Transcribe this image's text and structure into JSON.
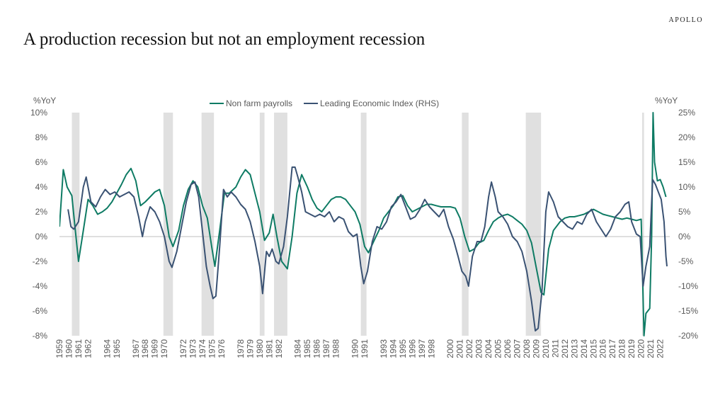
{
  "chart_data": {
    "type": "line",
    "brand": "APOLLO",
    "title": "A production recession but not an employment recession",
    "y_label": "%YoY",
    "y2_label": "%YoY",
    "legend": "top",
    "xlim": [
      1959,
      2023
    ],
    "xticks": [
      1959,
      1960,
      1961,
      1962,
      1964,
      1965,
      1967,
      1968,
      1969,
      1970,
      1972,
      1973,
      1974,
      1975,
      1976,
      1978,
      1979,
      1980,
      1981,
      1982,
      1984,
      1985,
      1986,
      1987,
      1988,
      1990,
      1991,
      1993,
      1994,
      1995,
      1996,
      1997,
      1998,
      2000,
      2001,
      2002,
      2003,
      2004,
      2005,
      2006,
      2007,
      2008,
      2009,
      2010,
      2011,
      2012,
      2013,
      2014,
      2015,
      2016,
      2017,
      2018,
      2019,
      2020,
      2021,
      2022
    ],
    "ylim": [
      -8,
      10
    ],
    "yticks": [
      {
        "value": -8,
        "label": "-8%"
      },
      {
        "value": -6,
        "label": "-6%"
      },
      {
        "value": -4,
        "label": "-4%"
      },
      {
        "value": -2,
        "label": "-2%"
      },
      {
        "value": 0,
        "label": "0%"
      },
      {
        "value": 2,
        "label": "2%"
      },
      {
        "value": 4,
        "label": "4%"
      },
      {
        "value": 6,
        "label": "6%"
      },
      {
        "value": 8,
        "label": "8%"
      },
      {
        "value": 10,
        "label": "10%"
      }
    ],
    "y2lim": [
      -20,
      25
    ],
    "y2ticks": [
      {
        "value": -20,
        "label": "-20%"
      },
      {
        "value": -15,
        "label": "-15%"
      },
      {
        "value": -10,
        "label": "-10%"
      },
      {
        "value": -5,
        "label": "-5%"
      },
      {
        "value": 0,
        "label": "0%"
      },
      {
        "value": 5,
        "label": "5%"
      },
      {
        "value": 10,
        "label": "10%"
      },
      {
        "value": 15,
        "label": "15%"
      },
      {
        "value": 20,
        "label": "20%"
      },
      {
        "value": 25,
        "label": "25%"
      }
    ],
    "recession_color": "#e0e0e0",
    "recessions": [
      [
        1960.3,
        1961.1
      ],
      [
        1969.9,
        1970.9
      ],
      [
        1973.9,
        1975.2
      ],
      [
        1980.0,
        1980.5
      ],
      [
        1981.5,
        1982.9
      ],
      [
        1990.6,
        1991.2
      ],
      [
        2001.2,
        2001.9
      ],
      [
        2007.9,
        2009.5
      ],
      [
        2020.1,
        2020.3
      ]
    ],
    "series": [
      {
        "name": "Non farm payrolls",
        "color": "#0e7b64",
        "axis": "y",
        "x": [
          1959.0,
          1959.4,
          1959.8,
          1960.3,
          1960.6,
          1961.0,
          1961.5,
          1962.0,
          1962.5,
          1963.0,
          1963.5,
          1964.0,
          1964.5,
          1965.0,
          1965.5,
          1966.0,
          1966.5,
          1967.0,
          1967.5,
          1968.0,
          1968.5,
          1969.0,
          1969.5,
          1970.0,
          1970.5,
          1970.9,
          1971.5,
          1972.0,
          1972.5,
          1973.0,
          1973.5,
          1974.0,
          1974.5,
          1975.0,
          1975.3,
          1975.8,
          1976.3,
          1976.8,
          1977.5,
          1978.0,
          1978.5,
          1979.0,
          1979.5,
          1980.0,
          1980.5,
          1981.0,
          1981.4,
          1981.8,
          1982.3,
          1982.9,
          1983.4,
          1983.9,
          1984.4,
          1985.0,
          1985.5,
          1986.0,
          1986.5,
          1987.0,
          1987.5,
          1988.0,
          1988.5,
          1989.0,
          1989.5,
          1990.0,
          1990.5,
          1991.0,
          1991.4,
          1992.0,
          1992.5,
          1993.0,
          1993.5,
          1994.0,
          1994.5,
          1995.0,
          1995.5,
          1996.0,
          1996.5,
          1997.0,
          1997.5,
          1998.0,
          1998.5,
          1999.0,
          1999.5,
          2000.0,
          2000.5,
          2001.0,
          2001.5,
          2002.0,
          2002.5,
          2003.0,
          2003.5,
          2004.0,
          2004.5,
          2005.0,
          2005.5,
          2006.0,
          2006.5,
          2007.0,
          2007.5,
          2008.0,
          2008.5,
          2009.0,
          2009.5,
          2009.8,
          2010.3,
          2010.8,
          2011.5,
          2012.0,
          2012.5,
          2013.0,
          2013.5,
          2014.0,
          2014.5,
          2015.0,
          2015.5,
          2016.0,
          2016.5,
          2017.0,
          2017.5,
          2018.0,
          2018.5,
          2019.0,
          2019.5,
          2020.0,
          2020.3,
          2020.5,
          2020.9,
          2021.1,
          2021.25,
          2021.4,
          2021.7,
          2022.0,
          2022.3,
          2022.6
        ],
        "values": [
          0.8,
          5.4,
          4.0,
          3.3,
          1.0,
          -2.0,
          0.5,
          3.0,
          2.5,
          1.8,
          2.0,
          2.3,
          2.8,
          3.5,
          4.2,
          5.0,
          5.5,
          4.5,
          2.5,
          2.8,
          3.2,
          3.6,
          3.8,
          2.5,
          0.0,
          -0.8,
          0.5,
          2.5,
          3.8,
          4.5,
          4.0,
          2.5,
          1.5,
          -1.0,
          -2.4,
          0.5,
          3.5,
          3.5,
          4.0,
          4.8,
          5.4,
          5.0,
          3.5,
          2.0,
          -0.3,
          0.3,
          1.8,
          0.0,
          -2.0,
          -2.6,
          0.0,
          3.5,
          5.0,
          4.0,
          3.0,
          2.3,
          2.0,
          2.5,
          3.0,
          3.2,
          3.2,
          3.0,
          2.5,
          2.0,
          1.0,
          -0.8,
          -1.3,
          -0.3,
          0.5,
          1.5,
          2.0,
          2.5,
          3.2,
          3.3,
          2.5,
          2.0,
          2.2,
          2.4,
          2.6,
          2.6,
          2.5,
          2.4,
          2.4,
          2.4,
          2.3,
          1.5,
          0.0,
          -1.2,
          -1.0,
          -0.5,
          -0.3,
          0.5,
          1.2,
          1.5,
          1.7,
          1.8,
          1.6,
          1.3,
          1.0,
          0.5,
          -0.5,
          -2.5,
          -4.5,
          -4.7,
          -1.0,
          0.5,
          1.2,
          1.5,
          1.6,
          1.6,
          1.7,
          1.8,
          2.0,
          2.2,
          2.0,
          1.8,
          1.7,
          1.6,
          1.5,
          1.4,
          1.5,
          1.4,
          1.3,
          1.4,
          -8.0,
          -6.2,
          -5.8,
          0.0,
          10.0,
          6.0,
          4.5,
          4.6,
          4.0,
          3.2
        ]
      },
      {
        "name": "Leading Economic Index (RHS)",
        "color": "#3a5273",
        "axis": "y2",
        "x": [
          1959.9,
          1960.2,
          1960.5,
          1961.0,
          1961.5,
          1961.8,
          1962.3,
          1962.8,
          1963.3,
          1963.8,
          1964.3,
          1964.8,
          1965.3,
          1965.8,
          1966.3,
          1966.8,
          1967.3,
          1967.7,
          1968.0,
          1968.5,
          1969.0,
          1969.5,
          1970.0,
          1970.5,
          1970.8,
          1971.3,
          1971.8,
          1972.3,
          1972.8,
          1973.2,
          1973.6,
          1974.0,
          1974.4,
          1974.8,
          1975.1,
          1975.4,
          1975.8,
          1976.2,
          1976.6,
          1977.0,
          1977.5,
          1978.0,
          1978.5,
          1979.0,
          1979.5,
          1980.0,
          1980.3,
          1980.7,
          1981.0,
          1981.3,
          1981.7,
          1982.0,
          1982.5,
          1982.9,
          1983.4,
          1983.7,
          1984.0,
          1984.4,
          1984.8,
          1985.3,
          1985.8,
          1986.3,
          1986.8,
          1987.3,
          1987.8,
          1988.3,
          1988.8,
          1989.3,
          1989.8,
          1990.2,
          1990.6,
          1990.9,
          1991.3,
          1991.8,
          1992.3,
          1992.8,
          1993.3,
          1993.8,
          1994.3,
          1994.8,
          1995.3,
          1995.8,
          1996.3,
          1996.8,
          1997.3,
          1997.8,
          1998.3,
          1998.8,
          1999.3,
          1999.8,
          2000.3,
          2000.8,
          2001.2,
          2001.6,
          2001.9,
          2002.3,
          2002.8,
          2003.2,
          2003.6,
          2004.0,
          2004.3,
          2004.7,
          2005.0,
          2005.5,
          2006.0,
          2006.5,
          2007.0,
          2007.5,
          2008.0,
          2008.5,
          2008.9,
          2009.2,
          2009.6,
          2010.0,
          2010.3,
          2010.8,
          2011.3,
          2011.8,
          2012.3,
          2012.8,
          2013.3,
          2013.8,
          2014.3,
          2014.8,
          2015.3,
          2015.8,
          2016.3,
          2016.8,
          2017.3,
          2017.8,
          2018.3,
          2018.7,
          2019.0,
          2019.5,
          2019.9,
          2020.2,
          2020.5,
          2020.9,
          2021.2,
          2021.5,
          2021.8,
          2022.1,
          2022.4,
          2022.6,
          2022.7
        ],
        "values": [
          5.5,
          2.0,
          1.5,
          3.0,
          10.0,
          12.0,
          7.0,
          6.0,
          8.0,
          9.5,
          8.5,
          9.0,
          8.0,
          8.5,
          9.0,
          8.0,
          4.0,
          0.0,
          3.0,
          6.0,
          5.0,
          3.0,
          0.0,
          -5.0,
          -6.2,
          -3.0,
          2.0,
          7.0,
          10.5,
          11.0,
          8.0,
          1.0,
          -6.0,
          -10.0,
          -12.5,
          -12.0,
          -2.0,
          9.5,
          8.0,
          9.0,
          8.0,
          6.5,
          5.5,
          3.0,
          -1.0,
          -6.0,
          -11.5,
          -3.0,
          -4.0,
          -2.5,
          -5.0,
          -5.5,
          -2.0,
          4.0,
          14.0,
          14.0,
          12.0,
          9.0,
          5.0,
          4.5,
          4.0,
          4.5,
          4.0,
          5.0,
          3.0,
          4.0,
          3.5,
          1.0,
          0.0,
          0.5,
          -6.0,
          -9.5,
          -7.0,
          -1.0,
          2.0,
          1.5,
          3.0,
          6.0,
          7.0,
          8.5,
          6.0,
          3.5,
          4.0,
          5.5,
          7.5,
          6.0,
          5.0,
          4.0,
          5.5,
          2.0,
          -0.5,
          -4.0,
          -7.0,
          -8.0,
          -10.0,
          -4.0,
          -1.0,
          -1.0,
          2.0,
          8.0,
          11.0,
          8.0,
          5.0,
          4.0,
          2.5,
          0.0,
          -1.0,
          -3.0,
          -7.0,
          -13.0,
          -19.0,
          -18.5,
          -11.0,
          5.0,
          9.0,
          7.0,
          4.0,
          3.0,
          2.0,
          1.5,
          3.0,
          2.5,
          4.5,
          5.5,
          3.0,
          1.5,
          0.0,
          1.5,
          4.0,
          5.0,
          6.5,
          7.0,
          3.0,
          0.5,
          0.0,
          -10.0,
          -6.0,
          -2.0,
          11.5,
          10.5,
          9.0,
          7.5,
          3.0,
          -4.0,
          -6.0
        ]
      }
    ]
  }
}
